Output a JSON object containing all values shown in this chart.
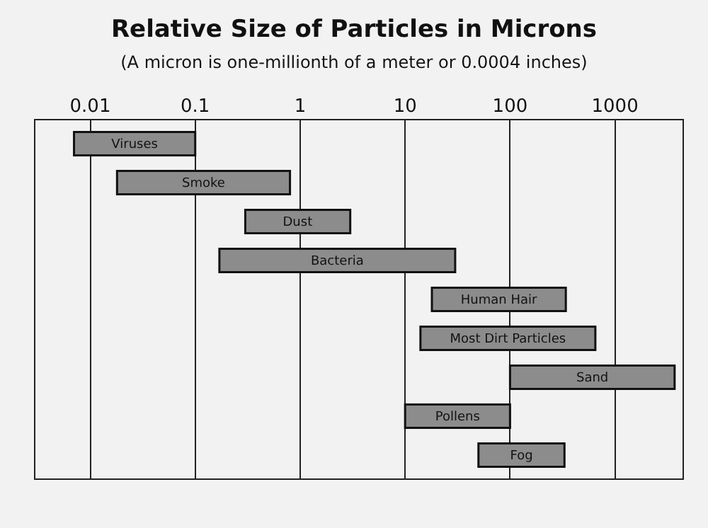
{
  "chart_data": {
    "type": "bar",
    "orientation": "horizontal",
    "title": "Relative Size of Particles in Microns",
    "subtitle": "(A micron is one-millionth of a meter or 0.0004 inches)",
    "categories": [
      "Viruses",
      "Smoke",
      "Dust",
      "Bacteria",
      "Human Hair",
      "Most Dirt Particles",
      "Sand",
      "Pollens",
      "Fog"
    ],
    "base": [
      0.007,
      0.018,
      0.3,
      0.17,
      18,
      14,
      100,
      10,
      50
    ],
    "values": [
      0.093,
      0.782,
      2.7,
      29.83,
      322,
      636,
      3600,
      90,
      280
    ],
    "color": "#8c8c8c",
    "log": "x",
    "xlim": [
      0.003,
      4400
    ],
    "xticks": [
      0.01,
      0.1,
      1,
      10,
      100,
      1000
    ],
    "grid": "x",
    "tick_labels": "x"
  }
}
